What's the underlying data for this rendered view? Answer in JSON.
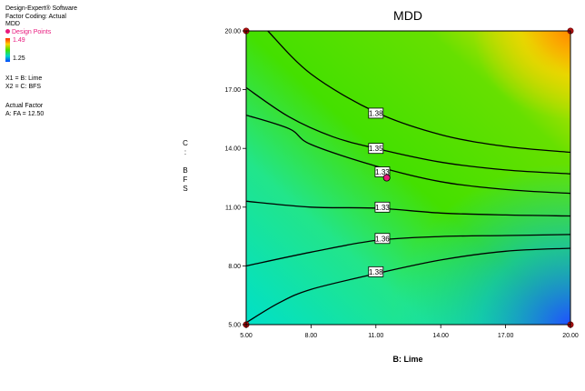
{
  "header": {
    "software": "Design-Expert® Software",
    "factor_coding": "Factor Coding: Actual",
    "response": "MDD"
  },
  "legend": {
    "design_points": "Design Points",
    "high": "1.49",
    "low": "1.25",
    "x1": "X1 = B: Lime",
    "x2": "X2 = C: BFS",
    "actual_factor_title": "Actual Factor",
    "actual_factor_value": "A: FA = 12.50"
  },
  "colors": {
    "contour_line": "#000000",
    "design_point": "#e8197d",
    "corner_point": "#b01010",
    "gradient_low": "#0044ff",
    "gradient_mid": "#44e000",
    "gradient_high": "#ff2a00"
  },
  "chart_data": {
    "type": "contour",
    "title": "MDD",
    "xlabel": "B: Lime",
    "ylabel": "C: BFS",
    "xlim": [
      5,
      20
    ],
    "ylim": [
      5,
      20
    ],
    "x_ticks": [
      "5.00",
      "8.00",
      "11.00",
      "14.00",
      "17.00",
      "20.00"
    ],
    "y_ticks": [
      "5.00",
      "8.00",
      "11.00",
      "14.00",
      "17.00",
      "20.00"
    ],
    "contours": [
      {
        "label": "1.38",
        "label_at": [
          11.0,
          7.7
        ],
        "points": [
          [
            5,
            5.1
          ],
          [
            6.5,
            6.1
          ],
          [
            8,
            6.8
          ],
          [
            11,
            7.6
          ],
          [
            14,
            8.3
          ],
          [
            17,
            8.75
          ],
          [
            20,
            8.9
          ]
        ]
      },
      {
        "label": "1.36",
        "label_at": [
          11.3,
          9.4
        ],
        "points": [
          [
            5,
            8.0
          ],
          [
            8,
            8.7
          ],
          [
            11,
            9.3
          ],
          [
            14,
            9.5
          ],
          [
            17,
            9.55
          ],
          [
            20,
            9.6
          ]
        ]
      },
      {
        "label": "1.33",
        "label_at": [
          11.3,
          11.0
        ],
        "points": [
          [
            5,
            11.3
          ],
          [
            8,
            11.0
          ],
          [
            11,
            10.95
          ],
          [
            14,
            10.7
          ],
          [
            17,
            10.6
          ],
          [
            20,
            10.55
          ]
        ]
      },
      {
        "label": "1.33",
        "label_at": [
          11.3,
          12.8
        ],
        "points": [
          [
            5,
            15.7
          ],
          [
            7,
            15.0
          ],
          [
            8,
            14.2
          ],
          [
            11,
            13.1
          ],
          [
            14,
            12.3
          ],
          [
            17,
            11.9
          ],
          [
            20,
            11.7
          ]
        ]
      },
      {
        "label": "1.35",
        "label_at": [
          11.0,
          14.0
        ],
        "points": [
          [
            5,
            17.1
          ],
          [
            7,
            15.6
          ],
          [
            9,
            14.6
          ],
          [
            11,
            14.0
          ],
          [
            14,
            13.3
          ],
          [
            17,
            12.9
          ],
          [
            20,
            12.7
          ]
        ]
      },
      {
        "label": "1.38",
        "label_at": [
          11.0,
          15.8
        ],
        "points": [
          [
            6,
            20
          ],
          [
            8,
            17.8
          ],
          [
            11,
            15.85
          ],
          [
            14,
            14.7
          ],
          [
            17,
            14.1
          ],
          [
            20,
            13.8
          ]
        ]
      }
    ],
    "design_points": [
      [
        11.5,
        12.5
      ]
    ],
    "corner_points": [
      [
        5,
        20
      ],
      [
        20,
        20
      ],
      [
        5,
        5
      ],
      [
        20,
        5
      ]
    ]
  },
  "side_label": "C: BFS"
}
